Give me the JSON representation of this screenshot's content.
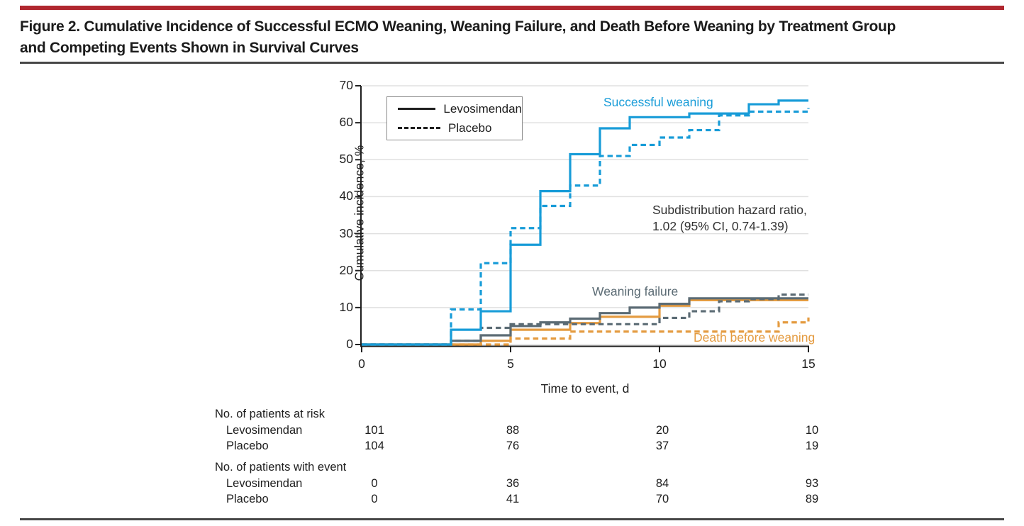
{
  "figure": {
    "title_line1": "Figure 2. Cumulative Incidence of Successful ECMO Weaning, Weaning Failure, and Death Before Weaning by Treatment Group",
    "title_line2": "and Competing Events Shown in Survival Curves"
  },
  "chart_data": {
    "type": "line",
    "subtype": "step-cumulative-incidence",
    "xlabel": "Time to event, d",
    "ylabel": "Cumulative incidence, %",
    "xlim": [
      0,
      15
    ],
    "ylim": [
      0,
      70
    ],
    "xticks": [
      0,
      5,
      10,
      15
    ],
    "yticks": [
      0,
      10,
      20,
      30,
      40,
      50,
      60,
      70
    ],
    "grid": true,
    "gridline_color": "#e0e0e0",
    "axis_color": "#1f1f1f",
    "legend": {
      "position": "top-left",
      "entries": [
        {
          "label": "Levosimendan",
          "style": "solid"
        },
        {
          "label": "Placebo",
          "style": "dashed"
        }
      ]
    },
    "annotation": {
      "line1": "Subdistribution hazard ratio,",
      "line2": "1.02 (95% CI, 0.74-1.39)"
    },
    "curve_group_labels": [
      {
        "label": "Successful weaning",
        "color": "#189cd8"
      },
      {
        "label": "Weaning failure",
        "color": "#5b6b74"
      },
      {
        "label": "Death before weaning",
        "color": "#e49b40"
      }
    ],
    "series": [
      {
        "name": "Death before weaning - Placebo",
        "event": "death-before-weaning",
        "group": "Placebo",
        "color": "#e49b40",
        "style": "dashed",
        "steps": [
          [
            0,
            0
          ],
          [
            5,
            1.6
          ],
          [
            7,
            3.5
          ],
          [
            14,
            6
          ],
          [
            15,
            7.3
          ]
        ]
      },
      {
        "name": "Death before weaning - Levosimendan",
        "event": "death-before-weaning",
        "group": "Levosimendan",
        "color": "#e49b40",
        "style": "solid",
        "steps": [
          [
            0,
            0
          ],
          [
            4,
            1
          ],
          [
            5,
            4
          ],
          [
            7,
            5.8
          ],
          [
            8,
            7.5
          ],
          [
            10,
            10.5
          ],
          [
            11,
            12
          ],
          [
            15,
            12
          ]
        ]
      },
      {
        "name": "Weaning failure - Placebo",
        "event": "weaning-failure",
        "group": "Placebo",
        "color": "#5b6b74",
        "style": "dashed",
        "steps": [
          [
            0,
            0
          ],
          [
            3,
            1
          ],
          [
            4,
            4.5
          ],
          [
            5,
            5.5
          ],
          [
            10,
            7.2
          ],
          [
            11,
            9
          ],
          [
            12,
            11.7
          ],
          [
            13,
            12.3
          ],
          [
            14,
            13.5
          ],
          [
            15,
            13.5
          ]
        ]
      },
      {
        "name": "Weaning failure - Levosimendan",
        "event": "weaning-failure",
        "group": "Levosimendan",
        "color": "#5b6b74",
        "style": "solid",
        "steps": [
          [
            0,
            0
          ],
          [
            3,
            1
          ],
          [
            4,
            2.5
          ],
          [
            5,
            5
          ],
          [
            6,
            6
          ],
          [
            7,
            7
          ],
          [
            8,
            8.5
          ],
          [
            9,
            10
          ],
          [
            10,
            11
          ],
          [
            11,
            12.5
          ],
          [
            15,
            12.5
          ]
        ]
      },
      {
        "name": "Successful weaning - Placebo",
        "event": "successful-weaning",
        "group": "Placebo",
        "color": "#189cd8",
        "style": "dashed",
        "steps": [
          [
            0,
            0
          ],
          [
            3,
            9.5
          ],
          [
            4,
            22
          ],
          [
            5,
            31.5
          ],
          [
            6,
            37.5
          ],
          [
            7,
            43
          ],
          [
            8,
            51
          ],
          [
            9,
            54
          ],
          [
            10,
            56
          ],
          [
            11,
            58
          ],
          [
            12,
            62
          ],
          [
            13,
            63
          ],
          [
            15,
            64
          ]
        ]
      },
      {
        "name": "Successful weaning - Levosimendan",
        "event": "successful-weaning",
        "group": "Levosimendan",
        "color": "#189cd8",
        "style": "solid",
        "steps": [
          [
            0,
            0
          ],
          [
            3,
            4
          ],
          [
            4,
            9
          ],
          [
            5,
            27
          ],
          [
            6,
            41.5
          ],
          [
            7,
            51.5
          ],
          [
            8,
            58.5
          ],
          [
            9,
            61.5
          ],
          [
            11,
            62.5
          ],
          [
            13,
            65
          ],
          [
            14,
            66
          ],
          [
            15,
            66
          ]
        ]
      }
    ]
  },
  "tables": {
    "at_risk": {
      "header": "No. of patients at risk",
      "rows": [
        {
          "label": "Levosimendan",
          "values": [
            "101",
            "88",
            "20",
            "10"
          ]
        },
        {
          "label": "Placebo",
          "values": [
            "104",
            "76",
            "37",
            "19"
          ]
        }
      ]
    },
    "with_event": {
      "header": "No. of patients with event",
      "rows": [
        {
          "label": "Levosimendan",
          "values": [
            "0",
            "36",
            "84",
            "93"
          ]
        },
        {
          "label": "Placebo",
          "values": [
            "0",
            "41",
            "70",
            "89"
          ]
        }
      ]
    }
  },
  "colors": {
    "accent_bar": "#b0272f",
    "successful_weaning": "#189cd8",
    "weaning_failure": "#5b6b74",
    "death_before_weaning": "#e49b40"
  }
}
